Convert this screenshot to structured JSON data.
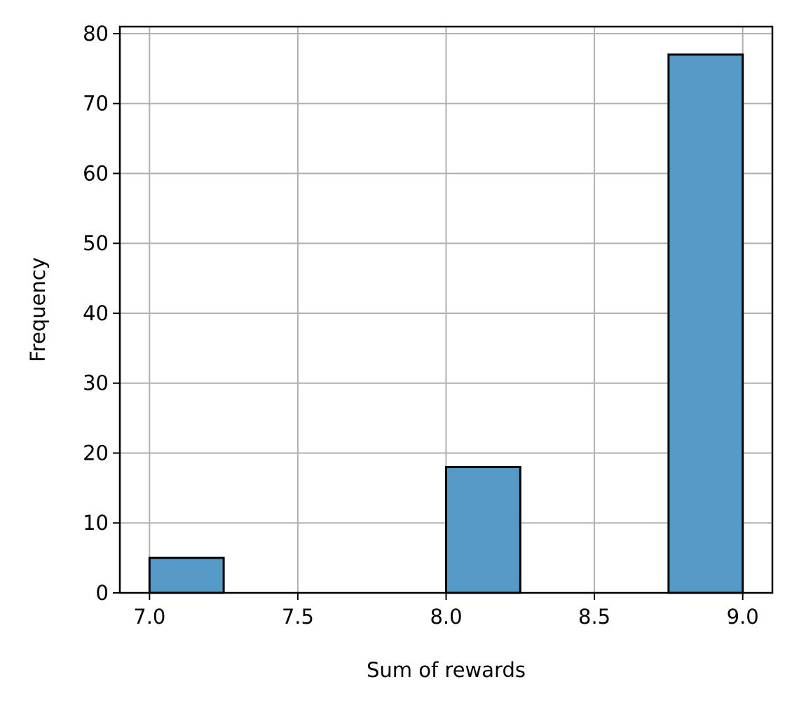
{
  "chart_data": {
    "type": "bar",
    "subtype": "histogram",
    "title": "",
    "xlabel": "Sum of rewards",
    "ylabel": "Frequency",
    "xlim": [
      6.9,
      9.1
    ],
    "ylim": [
      0,
      81
    ],
    "xticks": [
      7.0,
      7.5,
      8.0,
      8.5,
      9.0
    ],
    "xtick_labels": [
      "7.0",
      "7.5",
      "8.0",
      "8.5",
      "9.0"
    ],
    "yticks": [
      0,
      10,
      20,
      30,
      40,
      50,
      60,
      70,
      80
    ],
    "ytick_labels": [
      "0",
      "10",
      "20",
      "30",
      "40",
      "50",
      "60",
      "70",
      "80"
    ],
    "bins": [
      {
        "x0": 7.0,
        "x1": 7.25,
        "value": 5
      },
      {
        "x0": 8.0,
        "x1": 8.25,
        "value": 18
      },
      {
        "x0": 8.75,
        "x1": 9.0,
        "value": 77
      }
    ],
    "grid": true,
    "colors": {
      "bar_fill": "#5799c7",
      "bar_edge": "#000000",
      "grid": "#b0b0b0"
    }
  }
}
